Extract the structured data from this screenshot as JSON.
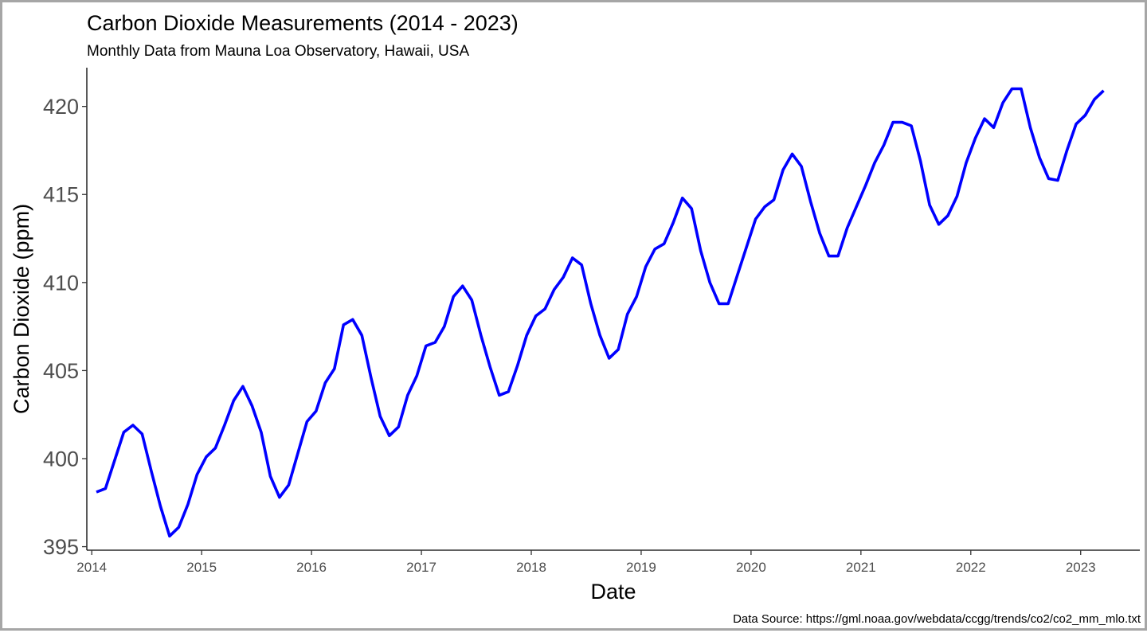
{
  "chart_data": {
    "type": "line",
    "title": "Carbon Dioxide Measurements (2014 - 2023)",
    "subtitle": "Monthly Data from Mauna Loa Observatory, Hawaii, USA",
    "xlabel": "Date",
    "ylabel": "Carbon Dioxide (ppm)",
    "caption": "Data Source: https://gml.noaa.gov/webdata/ccgg/trends/co2/co2_mm_mlo.txt",
    "xlim": [
      "2013-12-15",
      "2023-07-15"
    ],
    "ylim": [
      394.8,
      422.2
    ],
    "yticks": [
      395,
      400,
      405,
      410,
      415,
      420
    ],
    "xticks": [
      "2014",
      "2015",
      "2016",
      "2017",
      "2018",
      "2019",
      "2020",
      "2021",
      "2022",
      "2023"
    ],
    "grid": false,
    "line_color": "#0000ff",
    "series": [
      {
        "x": [
          "2014-01",
          "2014-02",
          "2014-03",
          "2014-04",
          "2014-05",
          "2014-06",
          "2014-07",
          "2014-08",
          "2014-09",
          "2014-10",
          "2014-11",
          "2014-12",
          "2015-01",
          "2015-02",
          "2015-03",
          "2015-04",
          "2015-05",
          "2015-06",
          "2015-07",
          "2015-08",
          "2015-09",
          "2015-10",
          "2015-11",
          "2015-12",
          "2016-01",
          "2016-02",
          "2016-03",
          "2016-04",
          "2016-05",
          "2016-06",
          "2016-07",
          "2016-08",
          "2016-09",
          "2016-10",
          "2016-11",
          "2016-12",
          "2017-01",
          "2017-02",
          "2017-03",
          "2017-04",
          "2017-05",
          "2017-06",
          "2017-07",
          "2017-08",
          "2017-09",
          "2017-10",
          "2017-11",
          "2017-12",
          "2018-01",
          "2018-02",
          "2018-03",
          "2018-04",
          "2018-05",
          "2018-06",
          "2018-07",
          "2018-08",
          "2018-09",
          "2018-10",
          "2018-11",
          "2018-12",
          "2019-01",
          "2019-02",
          "2019-03",
          "2019-04",
          "2019-05",
          "2019-06",
          "2019-07",
          "2019-08",
          "2019-09",
          "2019-10",
          "2019-11",
          "2019-12",
          "2020-01",
          "2020-02",
          "2020-03",
          "2020-04",
          "2020-05",
          "2020-06",
          "2020-07",
          "2020-08",
          "2020-09",
          "2020-10",
          "2020-11",
          "2020-12",
          "2021-01",
          "2021-02",
          "2021-03",
          "2021-04",
          "2021-05",
          "2021-06",
          "2021-07",
          "2021-08",
          "2021-09",
          "2021-10",
          "2021-11",
          "2021-12",
          "2022-01",
          "2022-02",
          "2022-03",
          "2022-04",
          "2022-05",
          "2022-06",
          "2022-07",
          "2022-08",
          "2022-09",
          "2022-10",
          "2022-11",
          "2022-12",
          "2023-01",
          "2023-02",
          "2023-03"
        ],
        "values": [
          398.1,
          398.3,
          399.9,
          401.5,
          401.9,
          401.4,
          399.3,
          397.3,
          395.6,
          396.1,
          397.4,
          399.1,
          400.1,
          400.6,
          401.9,
          403.3,
          404.1,
          403.0,
          401.5,
          399.0,
          397.8,
          398.5,
          400.3,
          402.1,
          402.7,
          404.3,
          405.1,
          407.6,
          407.9,
          407.0,
          404.6,
          402.4,
          401.3,
          401.8,
          403.6,
          404.7,
          406.4,
          406.6,
          407.5,
          409.2,
          409.8,
          409.0,
          407.0,
          405.2,
          403.6,
          403.8,
          405.3,
          407.0,
          408.1,
          408.5,
          409.6,
          410.3,
          411.4,
          411.0,
          408.8,
          407.0,
          405.7,
          406.2,
          408.2,
          409.2,
          410.9,
          411.9,
          412.2,
          413.4,
          414.8,
          414.2,
          411.8,
          410.0,
          408.8,
          408.8,
          410.4,
          412.0,
          413.6,
          414.3,
          414.7,
          416.4,
          417.3,
          416.6,
          414.6,
          412.8,
          411.5,
          411.5,
          413.1,
          414.3,
          415.5,
          416.8,
          417.8,
          419.1,
          419.1,
          418.9,
          416.9,
          414.4,
          413.3,
          413.8,
          414.9,
          416.8,
          418.2,
          419.3,
          418.8,
          420.2,
          421.0,
          421.0,
          418.8,
          417.1,
          415.9,
          415.8,
          417.5,
          419.0,
          419.5,
          420.4,
          420.9
        ]
      }
    ]
  }
}
